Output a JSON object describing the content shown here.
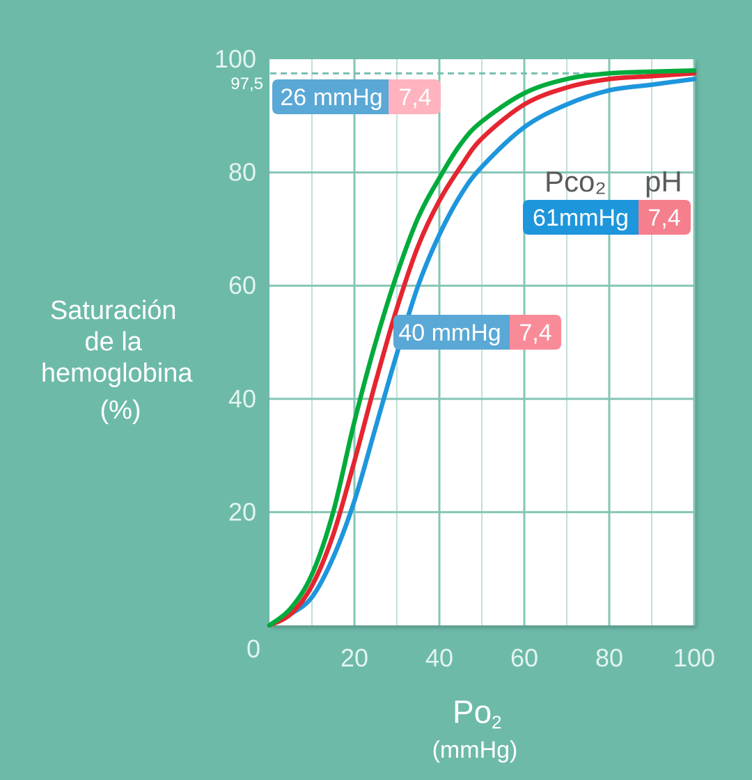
{
  "chart_data": {
    "type": "line",
    "title": "",
    "ylabel_lines": [
      "Saturación",
      "de la",
      "hemoglobina",
      "(%)"
    ],
    "xlabel": "Po",
    "xlabel_sub": "2",
    "xunit": "(mmHg)",
    "xlim": [
      0,
      100
    ],
    "ylim": [
      0,
      100
    ],
    "origin_label": "0",
    "x_ticks": [
      "20",
      "40",
      "60",
      "80",
      "100"
    ],
    "y_ticks": [
      "20",
      "40",
      "60",
      "80",
      "100"
    ],
    "reference_line": {
      "y": 97.5,
      "label": "97,5"
    },
    "legend_header": {
      "pco2": "Pco₂",
      "ph": "pH"
    },
    "grid": true,
    "series": [
      {
        "color": "#00ab3c",
        "pco2": "26 mmHg",
        "ph": "7,4",
        "x": [
          0,
          5,
          10,
          15,
          20,
          25,
          30,
          35,
          40,
          45,
          50,
          60,
          70,
          80,
          90,
          100
        ],
        "y": [
          0,
          3,
          9,
          20,
          36,
          50,
          62,
          72,
          79,
          85,
          89,
          94,
          96.5,
          97.5,
          97.8,
          98
        ]
      },
      {
        "color": "#e52530",
        "pco2": "40 mmHg",
        "ph": "7,4",
        "x": [
          0,
          5,
          10,
          15,
          20,
          25,
          30,
          35,
          40,
          45,
          50,
          60,
          70,
          80,
          90,
          100
        ],
        "y": [
          0,
          2,
          7,
          16,
          29,
          43,
          56,
          67,
          75,
          81,
          86,
          92,
          95,
          96.5,
          97,
          97.5
        ]
      },
      {
        "color": "#1e96dc",
        "pco2": "61mmHg",
        "ph": "7,4",
        "x": [
          0,
          5,
          10,
          15,
          20,
          25,
          30,
          35,
          40,
          45,
          50,
          60,
          70,
          80,
          90,
          100
        ],
        "y": [
          0,
          2,
          5,
          12,
          22,
          35,
          48,
          60,
          69,
          76,
          81,
          88,
          92,
          94.5,
          95.5,
          96.5
        ]
      }
    ],
    "badges_colors": {
      "pco2_light": "#5aa8d6",
      "ph_light": "#ffb3be",
      "pco2_dark": "#1e96dc",
      "ph_dark": "#f57f8c",
      "ph_mid": "#f98b98"
    }
  }
}
